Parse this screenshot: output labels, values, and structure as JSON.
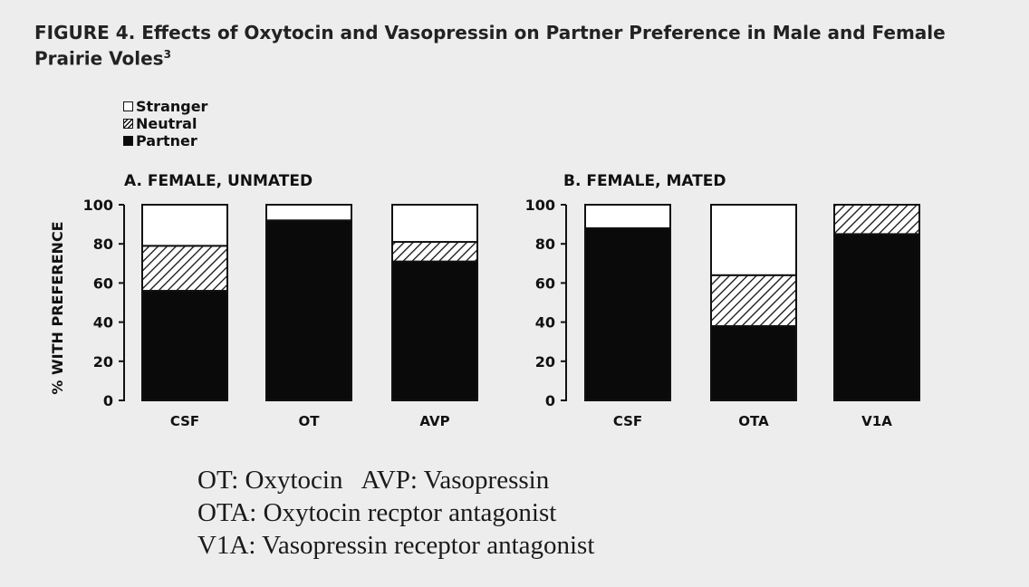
{
  "figure": {
    "title": "FIGURE 4. Effects of Oxytocin and Vasopressin on Partner Preference in Male and Female Prairie Voles",
    "title_superscript": "3"
  },
  "colors": {
    "stranger": "#ffffff",
    "neutral": "hatched",
    "partner": "#0a0a0a"
  },
  "chart_data": [
    {
      "type": "bar",
      "stacked": true,
      "title": "A. FEMALE, UNMATED",
      "ylabel": "% WITH PREFERENCE",
      "ylim": [
        0,
        100
      ],
      "yticks": [
        0,
        20,
        40,
        60,
        80,
        100
      ],
      "categories": [
        "CSF",
        "OT",
        "AVP"
      ],
      "legend": {
        "placement": "top-left"
      },
      "series": [
        {
          "name": "Partner",
          "values": [
            56,
            92,
            71
          ]
        },
        {
          "name": "Neutral",
          "values": [
            23,
            0,
            10
          ]
        },
        {
          "name": "Stranger",
          "values": [
            21,
            8,
            19
          ]
        }
      ]
    },
    {
      "type": "bar",
      "stacked": true,
      "title": "B. FEMALE, MATED",
      "ylabel": "",
      "ylim": [
        0,
        100
      ],
      "yticks": [
        0,
        20,
        40,
        60,
        80,
        100
      ],
      "categories": [
        "CSF",
        "OTA",
        "V1A"
      ],
      "series": [
        {
          "name": "Partner",
          "values": [
            88,
            38,
            85
          ]
        },
        {
          "name": "Neutral",
          "values": [
            0,
            26,
            15
          ]
        },
        {
          "name": "Stranger",
          "values": [
            12,
            36,
            0
          ]
        }
      ]
    }
  ],
  "footnotes": [
    "OT: Oxytocin   AVP: Vasopressin",
    "OTA: Oxytocin recptor antagonist",
    "V1A: Vasopressin receptor antagonist"
  ]
}
